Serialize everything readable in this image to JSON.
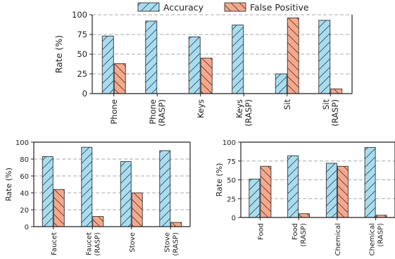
{
  "legend": {
    "items": [
      {
        "label": "Accuracy",
        "color": "#a9dcef",
        "hatch": "diag"
      },
      {
        "label": "False Positive",
        "color": "#f4a98e",
        "hatch": "anti"
      }
    ],
    "placement": "top-center"
  },
  "chart_data": [
    {
      "type": "bar",
      "categories": [
        [
          "Phone"
        ],
        [
          "Phone",
          "(RASP)"
        ],
        [
          "Keys"
        ],
        [
          "Keys",
          "(RASP)"
        ],
        [
          "Sit"
        ],
        [
          "Sit",
          "(RASP)"
        ]
      ],
      "series": [
        {
          "name": "Accuracy",
          "values": [
            73,
            92,
            72,
            87,
            25,
            93
          ]
        },
        {
          "name": "False Positive",
          "values": [
            38,
            0,
            45,
            0,
            96,
            6
          ]
        }
      ],
      "ylabel": "Rate (%)",
      "ylim": [
        0,
        100
      ],
      "yticks": [
        0,
        25,
        50,
        75,
        100
      ],
      "grid": "horizontal-dashed"
    },
    {
      "type": "bar",
      "categories": [
        [
          "Faucet"
        ],
        [
          "Faucet",
          "(RASP)"
        ],
        [
          "Stove"
        ],
        [
          "Stove",
          "(RASP)"
        ]
      ],
      "series": [
        {
          "name": "Accuracy",
          "values": [
            83,
            94,
            77,
            90
          ]
        },
        {
          "name": "False Positive",
          "values": [
            44,
            12,
            40,
            5
          ]
        }
      ],
      "ylabel": "Rate (%)",
      "ylim": [
        0,
        100
      ],
      "yticks": [
        0,
        20,
        40,
        60,
        80,
        100
      ],
      "grid": "horizontal-dashed"
    },
    {
      "type": "bar",
      "categories": [
        [
          "Food"
        ],
        [
          "Food",
          "(RASP)"
        ],
        [
          "Chemical"
        ],
        [
          "Chemical",
          "(RASP)"
        ]
      ],
      "series": [
        {
          "name": "Accuracy",
          "values": [
            51,
            82,
            72,
            93
          ]
        },
        {
          "name": "False Positive",
          "values": [
            68,
            5,
            68,
            3
          ]
        }
      ],
      "ylabel": "Rate (%)",
      "ylim": [
        0,
        100
      ],
      "yticks": [
        0,
        25,
        50,
        75,
        100
      ],
      "grid": "horizontal-dashed"
    }
  ]
}
